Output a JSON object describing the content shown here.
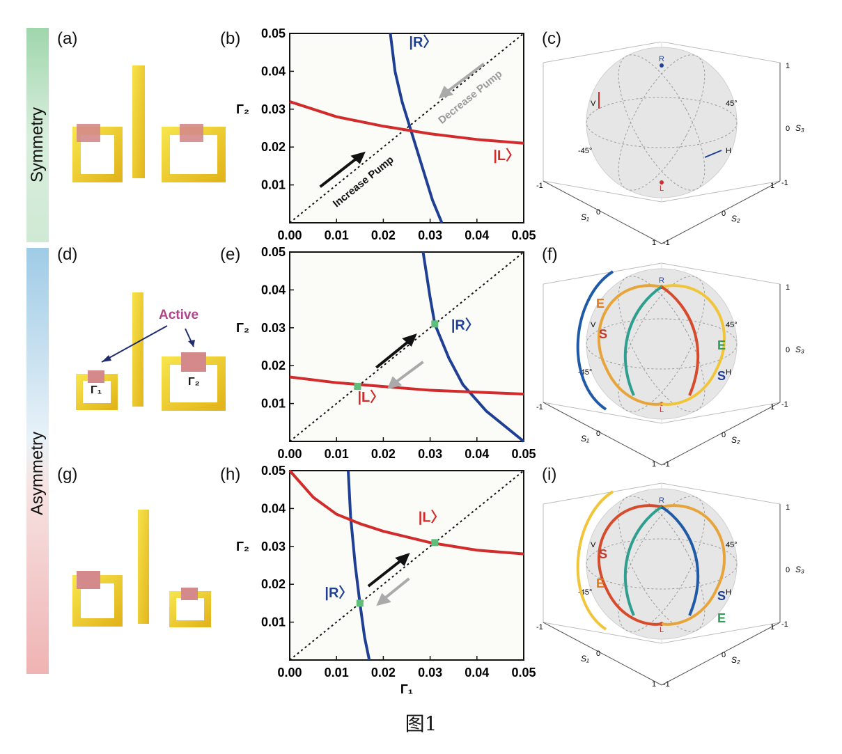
{
  "sidebar": {
    "symmetry_label": "Symmetry",
    "asymmetry_label": "Asymmetry",
    "colors": {
      "green": "#9fd6ac",
      "blue": "#9fcbe6",
      "pink": "#efb3b3"
    }
  },
  "panels": {
    "a": "(a)",
    "b": "(b)",
    "c": "(c)",
    "d": "(d)",
    "e": "(e)",
    "f": "(f)",
    "g": "(g)",
    "h": "(h)",
    "i": "(i)"
  },
  "device": {
    "active_label": "Active",
    "gamma1_label": "Γ₁",
    "gamma2_label": "Γ₂"
  },
  "axes": {
    "ylabel": "Γ₂",
    "xlabel": "Γ₁",
    "ticks": [
      "0.00",
      "0.01",
      "0.02",
      "0.03",
      "0.04",
      "0.05"
    ],
    "yticks": [
      "0.01",
      "0.02",
      "0.03",
      "0.04",
      "0.05"
    ]
  },
  "plot_b": {
    "R_label": "|R〉",
    "L_label": "|L〉",
    "increase_label": "Increase Pump",
    "decrease_label": "Decrease Pump"
  },
  "plot_e": {
    "R_label": "|R〉",
    "L_label": "|L〉"
  },
  "plot_h": {
    "R_label": "|R〉",
    "L_label": "|L〉"
  },
  "sphere": {
    "R": "R",
    "L": "L",
    "V": "V",
    "H": "H",
    "p45": "45°",
    "m45": "-45°",
    "S1": "S₁",
    "S2": "S₂",
    "S3": "S₃",
    "one": "1",
    "zero": "0",
    "mone": "-1",
    "S": "S",
    "E": "E"
  },
  "caption": "图1",
  "chart_data": [
    {
      "type": "line",
      "panel": "b",
      "xlabel": "Γ₁",
      "ylabel": "Γ₂",
      "xlim": [
        0,
        0.05
      ],
      "ylim": [
        0,
        0.05
      ],
      "series": [
        {
          "name": "|R〉",
          "values_x": [
            0.0215,
            0.0225,
            0.024,
            0.026,
            0.028,
            0.0305,
            0.0325
          ],
          "values_y": [
            0.05,
            0.04,
            0.032,
            0.024,
            0.016,
            0.006,
            0.0
          ]
        },
        {
          "name": "|L〉",
          "values_x": [
            0,
            0.01,
            0.02,
            0.03,
            0.04,
            0.05
          ],
          "values_y": [
            0.032,
            0.028,
            0.0255,
            0.0235,
            0.022,
            0.021
          ]
        }
      ]
    },
    {
      "type": "line",
      "panel": "e",
      "xlabel": "Γ₁",
      "ylabel": "Γ₂",
      "xlim": [
        0,
        0.05
      ],
      "ylim": [
        0,
        0.05
      ],
      "series": [
        {
          "name": "|R〉",
          "values_x": [
            0.0285,
            0.03,
            0.031,
            0.034,
            0.037,
            0.042,
            0.05
          ],
          "values_y": [
            0.05,
            0.038,
            0.031,
            0.022,
            0.015,
            0.008,
            0.0
          ]
        },
        {
          "name": "|L〉",
          "values_x": [
            0,
            0.01,
            0.02,
            0.03,
            0.04,
            0.05
          ],
          "values_y": [
            0.017,
            0.0155,
            0.0145,
            0.0135,
            0.013,
            0.0125
          ]
        }
      ]
    },
    {
      "type": "line",
      "panel": "h",
      "xlabel": "Γ₁",
      "ylabel": "Γ₂",
      "xlim": [
        0,
        0.05
      ],
      "ylim": [
        0,
        0.05
      ],
      "series": [
        {
          "name": "|R〉",
          "values_x": [
            0.0125,
            0.013,
            0.014,
            0.015,
            0.016,
            0.017
          ],
          "values_y": [
            0.05,
            0.038,
            0.025,
            0.015,
            0.006,
            0.0
          ]
        },
        {
          "name": "|L〉",
          "values_x": [
            0,
            0.005,
            0.01,
            0.015,
            0.02,
            0.03,
            0.04,
            0.05
          ],
          "values_y": [
            0.05,
            0.043,
            0.0385,
            0.036,
            0.034,
            0.031,
            0.029,
            0.028
          ]
        }
      ]
    }
  ]
}
